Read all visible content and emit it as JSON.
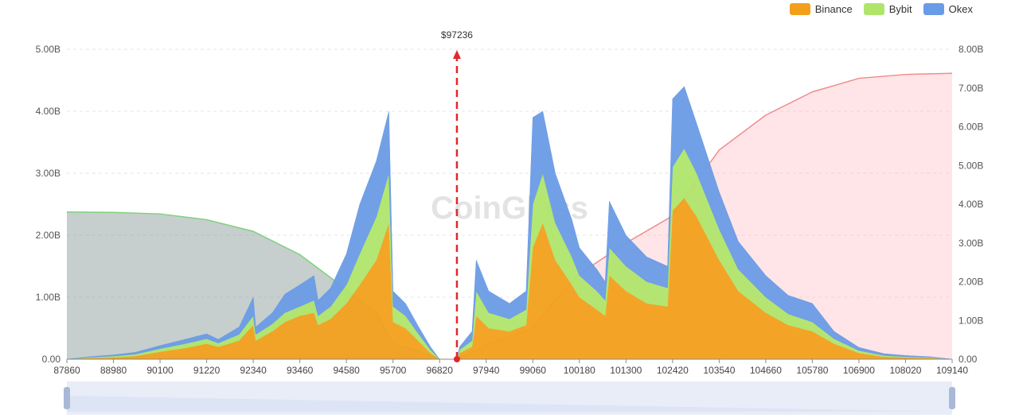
{
  "legend": [
    {
      "name": "Binance",
      "color": "#f2a01c"
    },
    {
      "name": "Bybit",
      "color": "#b0e56b"
    },
    {
      "name": "Okex",
      "color": "#6a9be6"
    }
  ],
  "watermark": "CoinGlass",
  "chart_data": {
    "type": "area",
    "current_price_label": "$97236",
    "current_price": 97236,
    "x_ticks": [
      "87860",
      "88980",
      "90100",
      "91220",
      "92340",
      "93460",
      "94580",
      "95700",
      "96820",
      "97940",
      "99060",
      "100180",
      "101300",
      "102420",
      "103540",
      "104660",
      "105780",
      "106900",
      "108020",
      "109140"
    ],
    "xlim": [
      87860,
      109140
    ],
    "y_left_ticks": [
      "0.00",
      "1.00B",
      "2.00B",
      "3.00B",
      "4.00B",
      "5.00B"
    ],
    "y_left_lim": [
      0,
      5
    ],
    "y_right_ticks": [
      "0.00",
      "1.00B",
      "2.00B",
      "3.00B",
      "4.00B",
      "5.00B",
      "6.00B",
      "7.00B",
      "8.00B"
    ],
    "y_right_lim": [
      0,
      8
    ],
    "grid": true,
    "legend_position": "top-right",
    "liquidation_series": [
      {
        "name": "Binance",
        "color": "#f2a01c",
        "points": [
          [
            87860,
            0
          ],
          [
            88400,
            0.02
          ],
          [
            88980,
            0.03
          ],
          [
            89500,
            0.05
          ],
          [
            90100,
            0.12
          ],
          [
            90700,
            0.18
          ],
          [
            91220,
            0.25
          ],
          [
            91500,
            0.2
          ],
          [
            92000,
            0.3
          ],
          [
            92340,
            0.55
          ],
          [
            92400,
            0.3
          ],
          [
            92800,
            0.45
          ],
          [
            93100,
            0.6
          ],
          [
            93460,
            0.7
          ],
          [
            93800,
            0.75
          ],
          [
            93900,
            0.55
          ],
          [
            94200,
            0.65
          ],
          [
            94580,
            0.9
          ],
          [
            94900,
            1.2
          ],
          [
            95300,
            1.6
          ],
          [
            95600,
            2.2
          ],
          [
            95700,
            0.6
          ],
          [
            96000,
            0.5
          ],
          [
            96300,
            0.3
          ],
          [
            96600,
            0.1
          ],
          [
            96820,
            0
          ],
          [
            97236,
            0
          ],
          [
            97300,
            0.1
          ],
          [
            97600,
            0.2
          ],
          [
            97700,
            0.7
          ],
          [
            98000,
            0.5
          ],
          [
            98500,
            0.45
          ],
          [
            98900,
            0.55
          ],
          [
            99060,
            1.8
          ],
          [
            99300,
            2.2
          ],
          [
            99600,
            1.6
          ],
          [
            100000,
            1.2
          ],
          [
            100180,
            1.0
          ],
          [
            100600,
            0.8
          ],
          [
            100800,
            0.7
          ],
          [
            100900,
            1.35
          ],
          [
            101300,
            1.1
          ],
          [
            101800,
            0.9
          ],
          [
            102300,
            0.85
          ],
          [
            102420,
            2.4
          ],
          [
            102700,
            2.6
          ],
          [
            103000,
            2.3
          ],
          [
            103540,
            1.6
          ],
          [
            104000,
            1.1
          ],
          [
            104660,
            0.75
          ],
          [
            105200,
            0.55
          ],
          [
            105780,
            0.45
          ],
          [
            106300,
            0.25
          ],
          [
            106900,
            0.1
          ],
          [
            107500,
            0.04
          ],
          [
            108020,
            0.03
          ],
          [
            108600,
            0.02
          ],
          [
            109140,
            0
          ]
        ]
      },
      {
        "name": "Bybit",
        "color": "#b0e56b",
        "points": [
          [
            87860,
            0
          ],
          [
            88400,
            0.01
          ],
          [
            88980,
            0.02
          ],
          [
            89500,
            0.03
          ],
          [
            90100,
            0.05
          ],
          [
            90700,
            0.07
          ],
          [
            91220,
            0.08
          ],
          [
            91500,
            0.06
          ],
          [
            92000,
            0.1
          ],
          [
            92340,
            0.15
          ],
          [
            92400,
            0.1
          ],
          [
            92800,
            0.12
          ],
          [
            93100,
            0.15
          ],
          [
            93460,
            0.15
          ],
          [
            93800,
            0.2
          ],
          [
            93900,
            0.15
          ],
          [
            94200,
            0.2
          ],
          [
            94580,
            0.3
          ],
          [
            94900,
            0.5
          ],
          [
            95300,
            0.7
          ],
          [
            95600,
            0.8
          ],
          [
            95700,
            0.25
          ],
          [
            96000,
            0.2
          ],
          [
            96300,
            0.12
          ],
          [
            96600,
            0.05
          ],
          [
            96820,
            0
          ],
          [
            97236,
            0
          ],
          [
            97300,
            0.05
          ],
          [
            97600,
            0.1
          ],
          [
            97700,
            0.4
          ],
          [
            98000,
            0.25
          ],
          [
            98500,
            0.2
          ],
          [
            98900,
            0.25
          ],
          [
            99060,
            0.7
          ],
          [
            99300,
            0.8
          ],
          [
            99600,
            0.6
          ],
          [
            100000,
            0.45
          ],
          [
            100180,
            0.35
          ],
          [
            100600,
            0.3
          ],
          [
            100800,
            0.25
          ],
          [
            100900,
            0.45
          ],
          [
            101300,
            0.4
          ],
          [
            101800,
            0.35
          ],
          [
            102300,
            0.3
          ],
          [
            102420,
            0.7
          ],
          [
            102700,
            0.8
          ],
          [
            103000,
            0.7
          ],
          [
            103540,
            0.5
          ],
          [
            104000,
            0.35
          ],
          [
            104660,
            0.25
          ],
          [
            105200,
            0.18
          ],
          [
            105780,
            0.15
          ],
          [
            106300,
            0.08
          ],
          [
            106900,
            0.04
          ],
          [
            107500,
            0.02
          ],
          [
            108020,
            0.01
          ],
          [
            108600,
            0.01
          ],
          [
            109140,
            0
          ]
        ]
      },
      {
        "name": "Okex",
        "color": "#6a9be6",
        "points": [
          [
            87860,
            0
          ],
          [
            88400,
            0.01
          ],
          [
            88980,
            0.02
          ],
          [
            89500,
            0.03
          ],
          [
            90100,
            0.05
          ],
          [
            90700,
            0.07
          ],
          [
            91220,
            0.08
          ],
          [
            91500,
            0.06
          ],
          [
            92000,
            0.12
          ],
          [
            92340,
            0.3
          ],
          [
            92400,
            0.12
          ],
          [
            92800,
            0.18
          ],
          [
            93100,
            0.3
          ],
          [
            93460,
            0.35
          ],
          [
            93800,
            0.4
          ],
          [
            93900,
            0.25
          ],
          [
            94200,
            0.3
          ],
          [
            94580,
            0.5
          ],
          [
            94900,
            0.8
          ],
          [
            95300,
            0.9
          ],
          [
            95600,
            1.0
          ],
          [
            95700,
            0.25
          ],
          [
            96000,
            0.2
          ],
          [
            96300,
            0.12
          ],
          [
            96600,
            0.05
          ],
          [
            96820,
            0
          ],
          [
            97236,
            0
          ],
          [
            97300,
            0.05
          ],
          [
            97600,
            0.15
          ],
          [
            97700,
            0.5
          ],
          [
            98000,
            0.35
          ],
          [
            98500,
            0.25
          ],
          [
            98900,
            0.3
          ],
          [
            99060,
            1.4
          ],
          [
            99300,
            1.0
          ],
          [
            99600,
            0.8
          ],
          [
            100000,
            0.6
          ],
          [
            100180,
            0.45
          ],
          [
            100600,
            0.35
          ],
          [
            100800,
            0.3
          ],
          [
            100900,
            0.75
          ],
          [
            101300,
            0.5
          ],
          [
            101800,
            0.4
          ],
          [
            102300,
            0.35
          ],
          [
            102420,
            1.1
          ],
          [
            102700,
            1.0
          ],
          [
            103000,
            0.8
          ],
          [
            103540,
            0.6
          ],
          [
            104000,
            0.45
          ],
          [
            104660,
            0.35
          ],
          [
            105200,
            0.3
          ],
          [
            105780,
            0.3
          ],
          [
            106300,
            0.12
          ],
          [
            106900,
            0.05
          ],
          [
            107500,
            0.03
          ],
          [
            108020,
            0.02
          ],
          [
            108600,
            0.01
          ],
          [
            109140,
            0
          ]
        ]
      }
    ],
    "cumulative_series": [
      {
        "side": "short",
        "line_color": "#7fd17f",
        "fill_color": "rgba(120,140,135,0.42)",
        "points": [
          [
            87860,
            3.8
          ],
          [
            88980,
            3.79
          ],
          [
            90100,
            3.75
          ],
          [
            91220,
            3.6
          ],
          [
            92340,
            3.3
          ],
          [
            93460,
            2.7
          ],
          [
            94580,
            1.8
          ],
          [
            95300,
            1.2
          ],
          [
            95700,
            0.4
          ],
          [
            96200,
            0.25
          ],
          [
            96820,
            0
          ]
        ]
      },
      {
        "side": "long",
        "line_color": "#f08c8c",
        "fill_color": "rgba(255,160,170,0.28)",
        "points": [
          [
            97236,
            0
          ],
          [
            97940,
            0.35
          ],
          [
            99060,
            0.8
          ],
          [
            99500,
            1.4
          ],
          [
            100180,
            2.2
          ],
          [
            101300,
            3.0
          ],
          [
            102420,
            3.7
          ],
          [
            103000,
            4.6
          ],
          [
            103540,
            5.4
          ],
          [
            104660,
            6.3
          ],
          [
            105780,
            6.9
          ],
          [
            106900,
            7.25
          ],
          [
            108020,
            7.35
          ],
          [
            109140,
            7.38
          ]
        ]
      }
    ]
  }
}
